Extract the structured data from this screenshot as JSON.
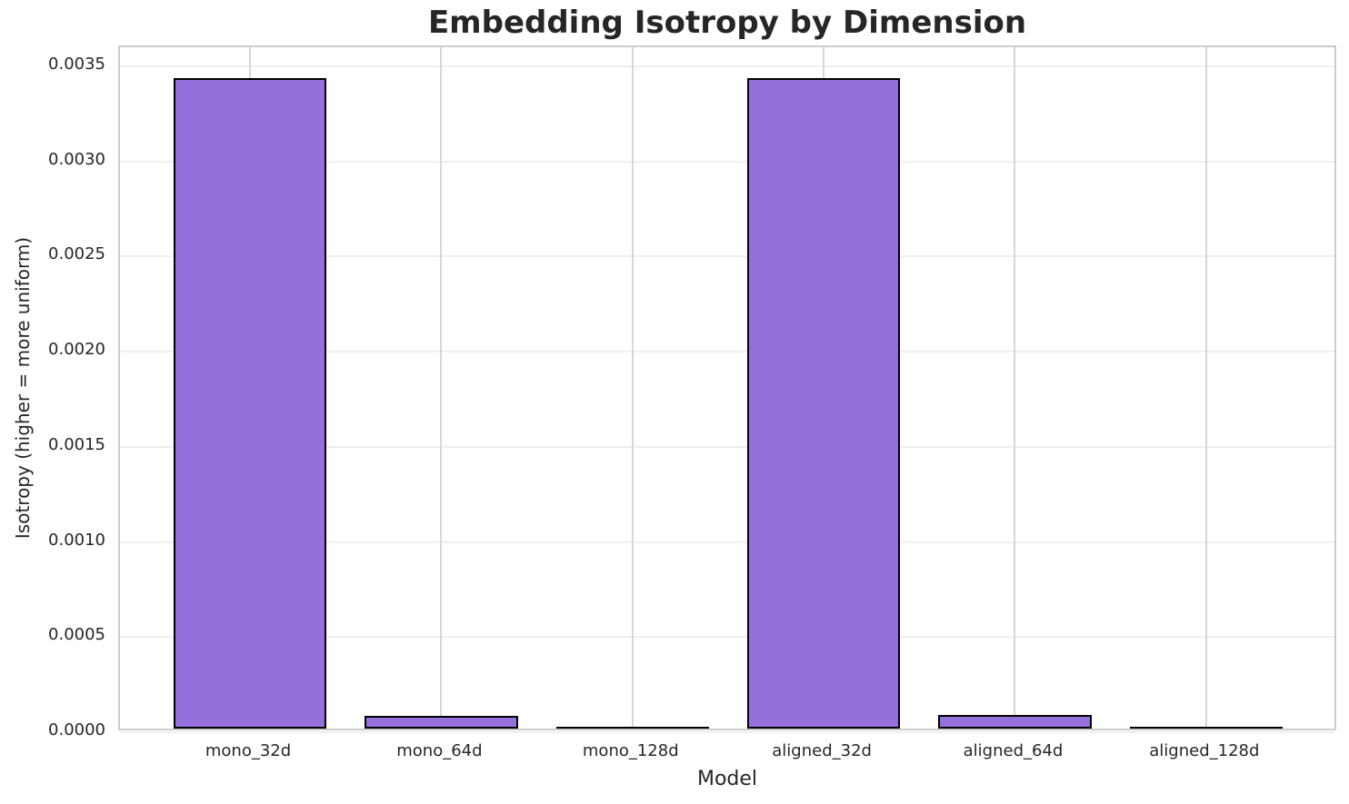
{
  "chart_data": {
    "type": "bar",
    "title": "Embedding Isotropy by Dimension",
    "xlabel": "Model",
    "ylabel": "Isotropy (higher = more uniform)",
    "categories": [
      "mono_32d",
      "mono_64d",
      "mono_128d",
      "aligned_32d",
      "aligned_64d",
      "aligned_128d"
    ],
    "values": [
      0.00342,
      6.5e-05,
      7e-06,
      0.00342,
      7e-05,
      7e-06
    ],
    "ylim": [
      0,
      0.0036
    ],
    "xlim": [
      -0.68,
      5.69
    ],
    "yticks": [
      0.0,
      0.0005,
      0.001,
      0.0015,
      0.002,
      0.0025,
      0.003,
      0.0035
    ],
    "ytick_labels": [
      "0.0000",
      "0.0005",
      "0.0010",
      "0.0015",
      "0.0020",
      "0.0025",
      "0.0030",
      "0.0035"
    ],
    "bar_width_units": 0.8,
    "grid": true,
    "legend": "none",
    "colors": {
      "bar_fill": "#9370db",
      "bar_edge": "#000000",
      "grid_horizontal": "#efefef",
      "grid_vertical": "#d7d7d7",
      "plot_border": "#cccccc",
      "text": "#262626",
      "background": "#ffffff"
    }
  }
}
